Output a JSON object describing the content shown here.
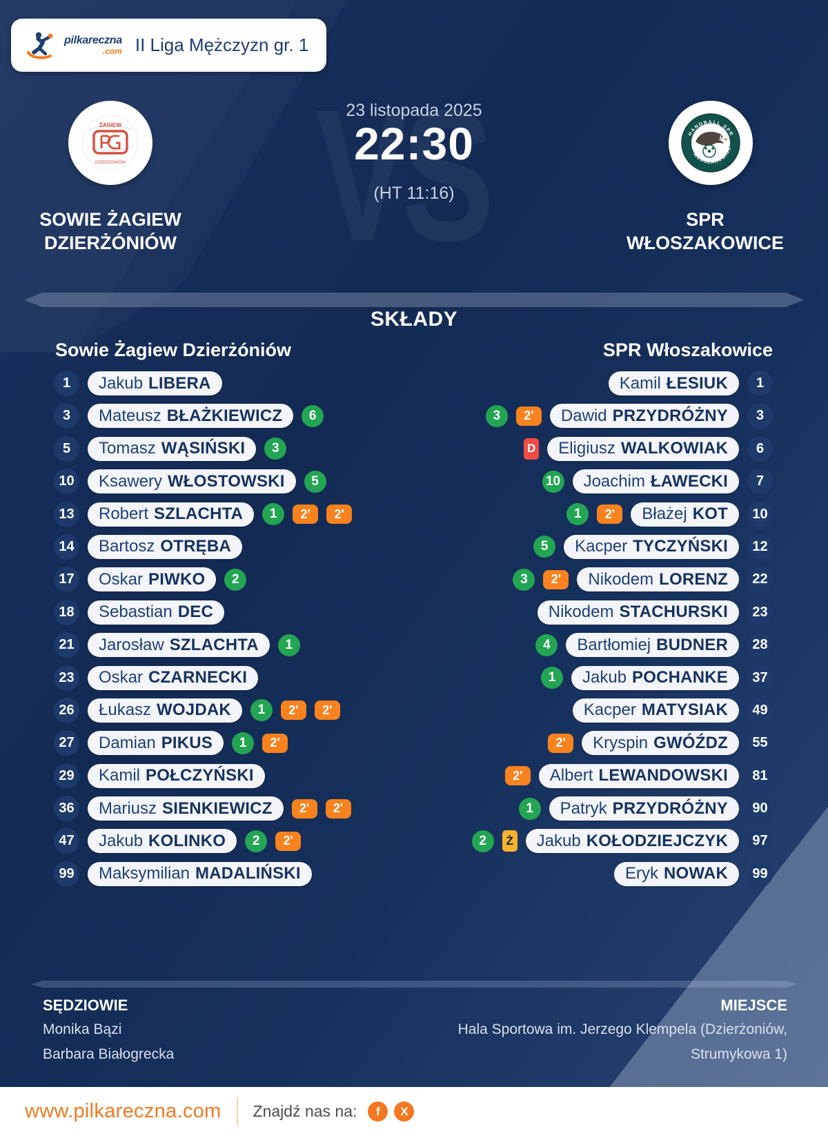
{
  "header": {
    "brand_name": "pilkareczna",
    "brand_tld": ".com",
    "league": "II Liga Mężczyzn gr. 1"
  },
  "match": {
    "date": "23 listopada 2025",
    "time": "22:30",
    "halftime": "(HT 11:16)",
    "vs_watermark": "VS",
    "home": {
      "name_lines": [
        "SOWIE ŻAGIEW",
        "DZIERŻÓNIÓW"
      ]
    },
    "away": {
      "name_lines": [
        "SPR",
        "WŁOSZAKOWICE"
      ]
    }
  },
  "lineups": {
    "title": "SKŁADY",
    "home_header": "Sowie Żagiew Dzierżóniów",
    "away_header": "SPR Włoszakowice",
    "home_players": [
      {
        "number": "1",
        "first": "Jakub",
        "last": "LIBERA",
        "badges": []
      },
      {
        "number": "3",
        "first": "Mateusz",
        "last": "BŁAŻKIEWICZ",
        "badges": [
          {
            "type": "goals",
            "value": "6"
          }
        ]
      },
      {
        "number": "5",
        "first": "Tomasz",
        "last": "WĄSIŃSKI",
        "badges": [
          {
            "type": "goals",
            "value": "3"
          }
        ]
      },
      {
        "number": "10",
        "first": "Ksawery",
        "last": "WŁOSTOWSKI",
        "badges": [
          {
            "type": "goals",
            "value": "5"
          }
        ]
      },
      {
        "number": "13",
        "first": "Robert",
        "last": "SZLACHTA",
        "badges": [
          {
            "type": "goals",
            "value": "1"
          },
          {
            "type": "susp",
            "value": "2'"
          },
          {
            "type": "susp",
            "value": "2'"
          }
        ]
      },
      {
        "number": "14",
        "first": "Bartosz",
        "last": "OTRĘBA",
        "badges": []
      },
      {
        "number": "17",
        "first": "Oskar",
        "last": "PIWKO",
        "badges": [
          {
            "type": "goals",
            "value": "2"
          }
        ]
      },
      {
        "number": "18",
        "first": "Sebastian",
        "last": "DEC",
        "badges": []
      },
      {
        "number": "21",
        "first": "Jarosław",
        "last": "SZLACHTA",
        "badges": [
          {
            "type": "goals",
            "value": "1"
          }
        ]
      },
      {
        "number": "23",
        "first": "Oskar",
        "last": "CZARNECKI",
        "badges": []
      },
      {
        "number": "26",
        "first": "Łukasz",
        "last": "WOJDAK",
        "badges": [
          {
            "type": "goals",
            "value": "1"
          },
          {
            "type": "susp",
            "value": "2'"
          },
          {
            "type": "susp",
            "value": "2'"
          }
        ]
      },
      {
        "number": "27",
        "first": "Damian",
        "last": "PIKUS",
        "badges": [
          {
            "type": "goals",
            "value": "1"
          },
          {
            "type": "susp",
            "value": "2'"
          }
        ]
      },
      {
        "number": "29",
        "first": "Kamil",
        "last": "POŁCZYŃSKI",
        "badges": []
      },
      {
        "number": "36",
        "first": "Mariusz",
        "last": "SIENKIEWICZ",
        "badges": [
          {
            "type": "susp",
            "value": "2'"
          },
          {
            "type": "susp",
            "value": "2'"
          }
        ]
      },
      {
        "number": "47",
        "first": "Jakub",
        "last": "KOLINKO",
        "badges": [
          {
            "type": "goals",
            "value": "2"
          },
          {
            "type": "susp",
            "value": "2'"
          }
        ]
      },
      {
        "number": "99",
        "first": "Maksymilian",
        "last": "MADALIŃSKI",
        "badges": []
      }
    ],
    "away_players": [
      {
        "number": "1",
        "first": "Kamil",
        "last": "ŁESIUK",
        "badges": []
      },
      {
        "number": "3",
        "first": "Dawid",
        "last": "PRZYDRÓŻNY",
        "badges": [
          {
            "type": "goals",
            "value": "3"
          },
          {
            "type": "susp",
            "value": "2'"
          }
        ]
      },
      {
        "number": "6",
        "first": "Eligiusz",
        "last": "WALKOWIAK",
        "badges": [
          {
            "type": "disq",
            "value": "D"
          }
        ]
      },
      {
        "number": "7",
        "first": "Joachim",
        "last": "ŁAWECKI",
        "badges": [
          {
            "type": "goals",
            "value": "10"
          }
        ]
      },
      {
        "number": "10",
        "first": "Błażej",
        "last": "KOT",
        "badges": [
          {
            "type": "goals",
            "value": "1"
          },
          {
            "type": "susp",
            "value": "2'"
          }
        ]
      },
      {
        "number": "12",
        "first": "Kacper",
        "last": "TYCZYŃSKI",
        "badges": [
          {
            "type": "goals",
            "value": "5"
          }
        ]
      },
      {
        "number": "22",
        "first": "Nikodem",
        "last": "LORENZ",
        "badges": [
          {
            "type": "goals",
            "value": "3"
          },
          {
            "type": "susp",
            "value": "2'"
          }
        ]
      },
      {
        "number": "23",
        "first": "Nikodem",
        "last": "STACHURSKI",
        "badges": []
      },
      {
        "number": "28",
        "first": "Bartłomiej",
        "last": "BUDNER",
        "badges": [
          {
            "type": "goals",
            "value": "4"
          }
        ]
      },
      {
        "number": "37",
        "first": "Jakub",
        "last": "POCHANKE",
        "badges": [
          {
            "type": "goals",
            "value": "1"
          }
        ]
      },
      {
        "number": "49",
        "first": "Kacper",
        "last": "MATYSIAK",
        "badges": []
      },
      {
        "number": "55",
        "first": "Kryspin",
        "last": "GWÓŹDZ",
        "badges": [
          {
            "type": "susp",
            "value": "2'"
          }
        ]
      },
      {
        "number": "81",
        "first": "Albert",
        "last": "LEWANDOWSKI",
        "badges": [
          {
            "type": "susp",
            "value": "2'"
          }
        ]
      },
      {
        "number": "90",
        "first": "Patryk",
        "last": "PRZYDRÓŻNY",
        "badges": [
          {
            "type": "goals",
            "value": "1"
          }
        ]
      },
      {
        "number": "97",
        "first": "Jakub",
        "last": "KOŁODZIEJCZYK",
        "badges": [
          {
            "type": "goals",
            "value": "2"
          },
          {
            "type": "yellow",
            "value": "Ż"
          }
        ]
      },
      {
        "number": "99",
        "first": "Eryk",
        "last": "NOWAK",
        "badges": []
      }
    ]
  },
  "officials": {
    "referees_label": "SĘDZIOWIE",
    "referees": [
      "Monika Bązi",
      "Barbara Białogrecka"
    ],
    "venue_label": "MIEJSCE",
    "venue_lines": [
      "Hala Sportowa im. Jerzego Klempela (Dzierżoniów,",
      "Strumykowa 1)"
    ]
  },
  "footer": {
    "url": "www.pilkareczna.com",
    "find_us": "Znajdź nas na:",
    "socials": [
      {
        "icon": "facebook-icon",
        "glyph": "f"
      },
      {
        "icon": "x-icon",
        "glyph": "X"
      }
    ]
  },
  "colors": {
    "background_navy": "#132b55",
    "accent_orange": "#f4781f",
    "goal_green": "#23a553",
    "suspension_orange": "#f8821e",
    "disqualification_red": "#ef4b45",
    "yellow_card": "#f5b32b",
    "pill_white": "#f3f5fa",
    "text_navy": "#1c3e71"
  }
}
